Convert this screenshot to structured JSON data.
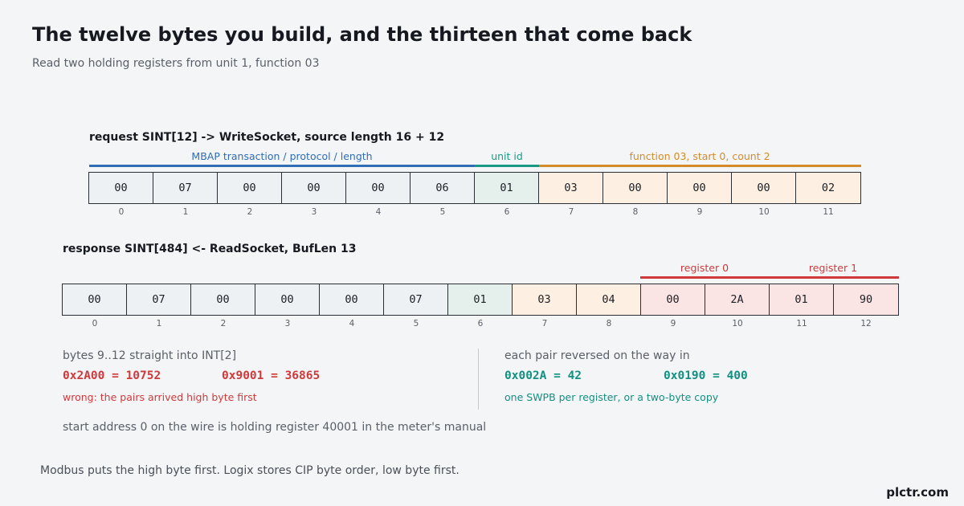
{
  "title": "The twelve bytes you build, and the thirteen that come back",
  "subtitle": "Read two holding registers from unit 1, function 03",
  "request": {
    "label": "request  SINT[12]  -> WriteSocket, source length 16 + 12",
    "segments": [
      {
        "label": "MBAP  transaction / protocol / length",
        "color": "#2f6db5"
      },
      {
        "label": "unit id",
        "color": "#1a9a86"
      },
      {
        "label": "function 03, start 0, count 2",
        "color": "#d48c2a"
      }
    ],
    "bytes": [
      "00",
      "07",
      "00",
      "00",
      "00",
      "06",
      "01",
      "03",
      "00",
      "00",
      "00",
      "02"
    ],
    "indices": [
      "0",
      "1",
      "2",
      "3",
      "4",
      "5",
      "6",
      "7",
      "8",
      "9",
      "10",
      "11"
    ]
  },
  "response": {
    "label": "response  SINT[484]  <- ReadSocket, BufLen 13",
    "segments": [
      {
        "label": "register 0",
        "color": "#d0393c"
      },
      {
        "label": "register 1",
        "color": "#d0393c"
      }
    ],
    "bytes": [
      "00",
      "07",
      "00",
      "00",
      "00",
      "07",
      "01",
      "03",
      "04",
      "00",
      "2A",
      "01",
      "90"
    ],
    "indices": [
      "0",
      "1",
      "2",
      "3",
      "4",
      "5",
      "6",
      "7",
      "8",
      "9",
      "10",
      "11",
      "12"
    ]
  },
  "left_panel": {
    "heading": "bytes 9..12 straight into INT[2]",
    "value1": "0x2A00 = 10752",
    "value2": "0x9001 = 36865",
    "note": "wrong: the pairs arrived high byte first"
  },
  "right_panel": {
    "heading": "each pair reversed on the way in",
    "value1": "0x002A = 42",
    "value2": "0x0190 = 400",
    "note": "one SWPB per register, or a two-byte copy"
  },
  "address_note": "start address 0 on the wire is holding register 40001 in the meter's manual",
  "footer": "Modbus puts the high byte first. Logix stores CIP byte order, low byte first.",
  "brand": "plctr.com"
}
